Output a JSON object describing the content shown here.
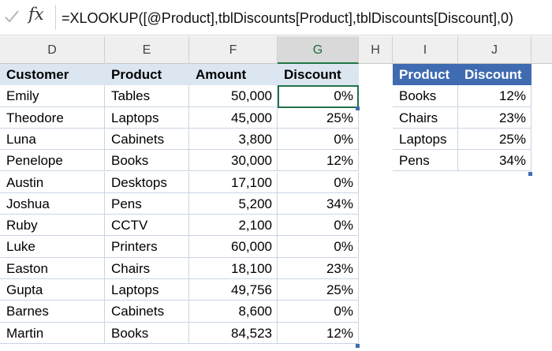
{
  "formula_bar": {
    "fx_label": "fx",
    "formula": "=XLOOKUP([@Product],tblDiscounts[Product],tblDiscounts[Discount],0)"
  },
  "columns": [
    "D",
    "E",
    "F",
    "G",
    "H",
    "I",
    "J"
  ],
  "sales_table": {
    "headers": [
      "Customer",
      "Product",
      "Amount",
      "Discount"
    ],
    "rows": [
      [
        "Emily",
        "Tables",
        "50,000",
        "0%"
      ],
      [
        "Theodore",
        "Laptops",
        "45,000",
        "25%"
      ],
      [
        "Luna",
        "Cabinets",
        "3,800",
        "0%"
      ],
      [
        "Penelope",
        "Books",
        "30,000",
        "12%"
      ],
      [
        "Austin",
        "Desktops",
        "17,100",
        "0%"
      ],
      [
        "Joshua",
        "Pens",
        "5,200",
        "34%"
      ],
      [
        "Ruby",
        "CCTV",
        "2,100",
        "0%"
      ],
      [
        "Luke",
        "Printers",
        "60,000",
        "0%"
      ],
      [
        "Easton",
        "Chairs",
        "18,100",
        "23%"
      ],
      [
        "Gupta",
        "Laptops",
        "49,756",
        "25%"
      ],
      [
        "Barnes",
        "Cabinets",
        "8,600",
        "0%"
      ],
      [
        "Martin",
        "Books",
        "84,523",
        "12%"
      ]
    ]
  },
  "discount_table": {
    "headers": [
      "Product",
      "Discount"
    ],
    "rows": [
      [
        "Books",
        "12%"
      ],
      [
        "Chairs",
        "23%"
      ],
      [
        "Laptops",
        "25%"
      ],
      [
        "Pens",
        "34%"
      ]
    ]
  },
  "colors": {
    "header_fill": "#dce6f1",
    "discount_header_fill": "#3f6bb1",
    "active_border": "#217346"
  }
}
